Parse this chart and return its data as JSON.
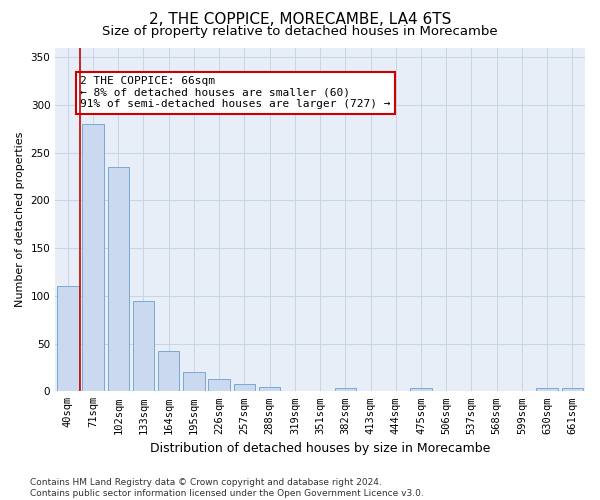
{
  "title": "2, THE COPPICE, MORECAMBE, LA4 6TS",
  "subtitle": "Size of property relative to detached houses in Morecambe",
  "xlabel": "Distribution of detached houses by size in Morecambe",
  "ylabel": "Number of detached properties",
  "categories": [
    "40sqm",
    "71sqm",
    "102sqm",
    "133sqm",
    "164sqm",
    "195sqm",
    "226sqm",
    "257sqm",
    "288sqm",
    "319sqm",
    "351sqm",
    "382sqm",
    "413sqm",
    "444sqm",
    "475sqm",
    "506sqm",
    "537sqm",
    "568sqm",
    "599sqm",
    "630sqm",
    "661sqm"
  ],
  "values": [
    110,
    280,
    235,
    95,
    42,
    20,
    13,
    8,
    5,
    0,
    0,
    3,
    0,
    0,
    3,
    0,
    0,
    0,
    0,
    3,
    3
  ],
  "bar_color": "#cad9ef",
  "bar_edge_color": "#6aa0cc",
  "annotation_text": "2 THE COPPICE: 66sqm\n← 8% of detached houses are smaller (60)\n91% of semi-detached houses are larger (727) →",
  "annotation_box_facecolor": "#ffffff",
  "annotation_box_edgecolor": "#cc0000",
  "ylim": [
    0,
    360
  ],
  "yticks": [
    0,
    50,
    100,
    150,
    200,
    250,
    300,
    350
  ],
  "grid_color": "#c8d4e8",
  "background_color": "#e8eef8",
  "footer_line1": "Contains HM Land Registry data © Crown copyright and database right 2024.",
  "footer_line2": "Contains public sector information licensed under the Open Government Licence v3.0.",
  "title_fontsize": 11,
  "subtitle_fontsize": 9.5,
  "xlabel_fontsize": 9,
  "ylabel_fontsize": 8,
  "tick_fontsize": 7.5,
  "annotation_fontsize": 8,
  "footer_fontsize": 6.5
}
